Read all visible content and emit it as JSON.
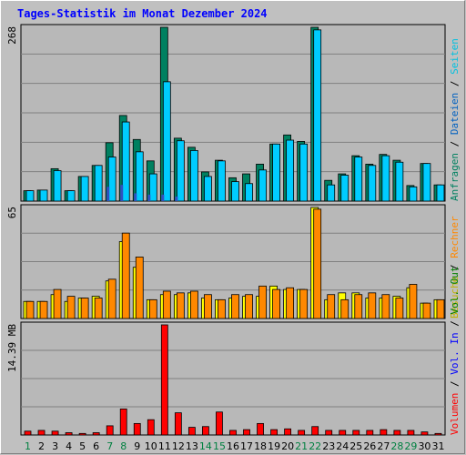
{
  "title": "Tages-Statistik im Monat Dezember 2024",
  "colors": {
    "background": "#c0c0c0",
    "plot": "#b8b8b8",
    "anfragen": "#008060",
    "dateien": "#00ccff",
    "seiten": "#00e0ff",
    "besuche": "#ffff00",
    "rechner": "#ff8800",
    "volumen": "#ff0000",
    "vol_in": "#0000ff",
    "vol_out": "#008000",
    "weekend": "#008040",
    "weekday": "#000000"
  },
  "chart_data": [
    {
      "type": "bar",
      "panel": "top",
      "ymax_label": "268",
      "ylim": [
        0,
        268
      ],
      "categories": [
        "1",
        "2",
        "3",
        "4",
        "5",
        "6",
        "7",
        "8",
        "9",
        "10",
        "11",
        "12",
        "13",
        "14",
        "15",
        "16",
        "17",
        "18",
        "19",
        "20",
        "21",
        "22",
        "23",
        "24",
        "25",
        "26",
        "27",
        "28",
        "29",
        "30",
        "31"
      ],
      "weekend_days": [
        "1",
        "7",
        "8",
        "14",
        "15",
        "21",
        "22",
        "28",
        "29"
      ],
      "series": [
        {
          "name": "Anfragen",
          "values": [
            16,
            17,
            50,
            16,
            38,
            55,
            90,
            132,
            95,
            62,
            268,
            97,
            83,
            45,
            63,
            36,
            42,
            57,
            88,
            102,
            92,
            268,
            32,
            42,
            70,
            57,
            72,
            63,
            24,
            58,
            25
          ]
        },
        {
          "name": "Dateien",
          "values": [
            16,
            17,
            47,
            16,
            38,
            55,
            68,
            122,
            76,
            42,
            184,
            93,
            78,
            38,
            62,
            30,
            27,
            48,
            88,
            94,
            88,
            264,
            25,
            40,
            68,
            55,
            70,
            60,
            22,
            58,
            25
          ]
        },
        {
          "name": "Seiten",
          "values": [
            0,
            0,
            0,
            0,
            0,
            0,
            22,
            25,
            12,
            10,
            10,
            7,
            0,
            0,
            0,
            0,
            0,
            0,
            0,
            0,
            0,
            0,
            0,
            0,
            0,
            0,
            0,
            0,
            0,
            0,
            0
          ]
        }
      ],
      "right_labels": [
        "Anfragen",
        "Dateien",
        "Seiten"
      ]
    },
    {
      "type": "bar",
      "panel": "middle",
      "ymax_label": "65",
      "ylim": [
        0,
        65
      ],
      "categories": [
        "1",
        "2",
        "3",
        "4",
        "5",
        "6",
        "7",
        "8",
        "9",
        "10",
        "11",
        "12",
        "13",
        "14",
        "15",
        "16",
        "17",
        "18",
        "19",
        "20",
        "21",
        "22",
        "23",
        "24",
        "25",
        "26",
        "27",
        "28",
        "29",
        "30",
        "31"
      ],
      "series": [
        {
          "name": "Besuche",
          "values": [
            10,
            10,
            14,
            10,
            12,
            13,
            22,
            45,
            30,
            11,
            14,
            14,
            15,
            12,
            11,
            12,
            13,
            13,
            19,
            17,
            17,
            65,
            11,
            15,
            15,
            12,
            12,
            13,
            18,
            9,
            11
          ]
        },
        {
          "name": "Rechner",
          "values": [
            10,
            10,
            17,
            13,
            12,
            12,
            23,
            50,
            36,
            11,
            16,
            15,
            16,
            14,
            11,
            14,
            14,
            19,
            17,
            18,
            17,
            64,
            14,
            11,
            14,
            15,
            14,
            12,
            20,
            9,
            11
          ]
        }
      ],
      "right_labels": [
        "Besuche",
        "Rechner"
      ]
    },
    {
      "type": "bar",
      "panel": "bottom",
      "ymax_label": "14.39 MB",
      "ylim": [
        0,
        14.39
      ],
      "categories": [
        "1",
        "2",
        "3",
        "4",
        "5",
        "6",
        "7",
        "8",
        "9",
        "10",
        "11",
        "12",
        "13",
        "14",
        "15",
        "16",
        "17",
        "18",
        "19",
        "20",
        "21",
        "22",
        "23",
        "24",
        "25",
        "26",
        "27",
        "28",
        "29",
        "30",
        "31"
      ],
      "series": [
        {
          "name": "Volumen",
          "values": [
            0.5,
            0.6,
            0.5,
            0.3,
            0.2,
            0.3,
            1.2,
            3.4,
            1.5,
            2.0,
            14.39,
            2.9,
            1.0,
            1.1,
            3.0,
            0.6,
            0.7,
            1.5,
            0.7,
            0.8,
            0.6,
            1.1,
            0.6,
            0.6,
            0.6,
            0.6,
            0.7,
            0.6,
            0.6,
            0.4,
            0.2
          ]
        }
      ],
      "right_labels": [
        "Volumen",
        "Vol. In",
        "Vol. Out"
      ]
    }
  ]
}
